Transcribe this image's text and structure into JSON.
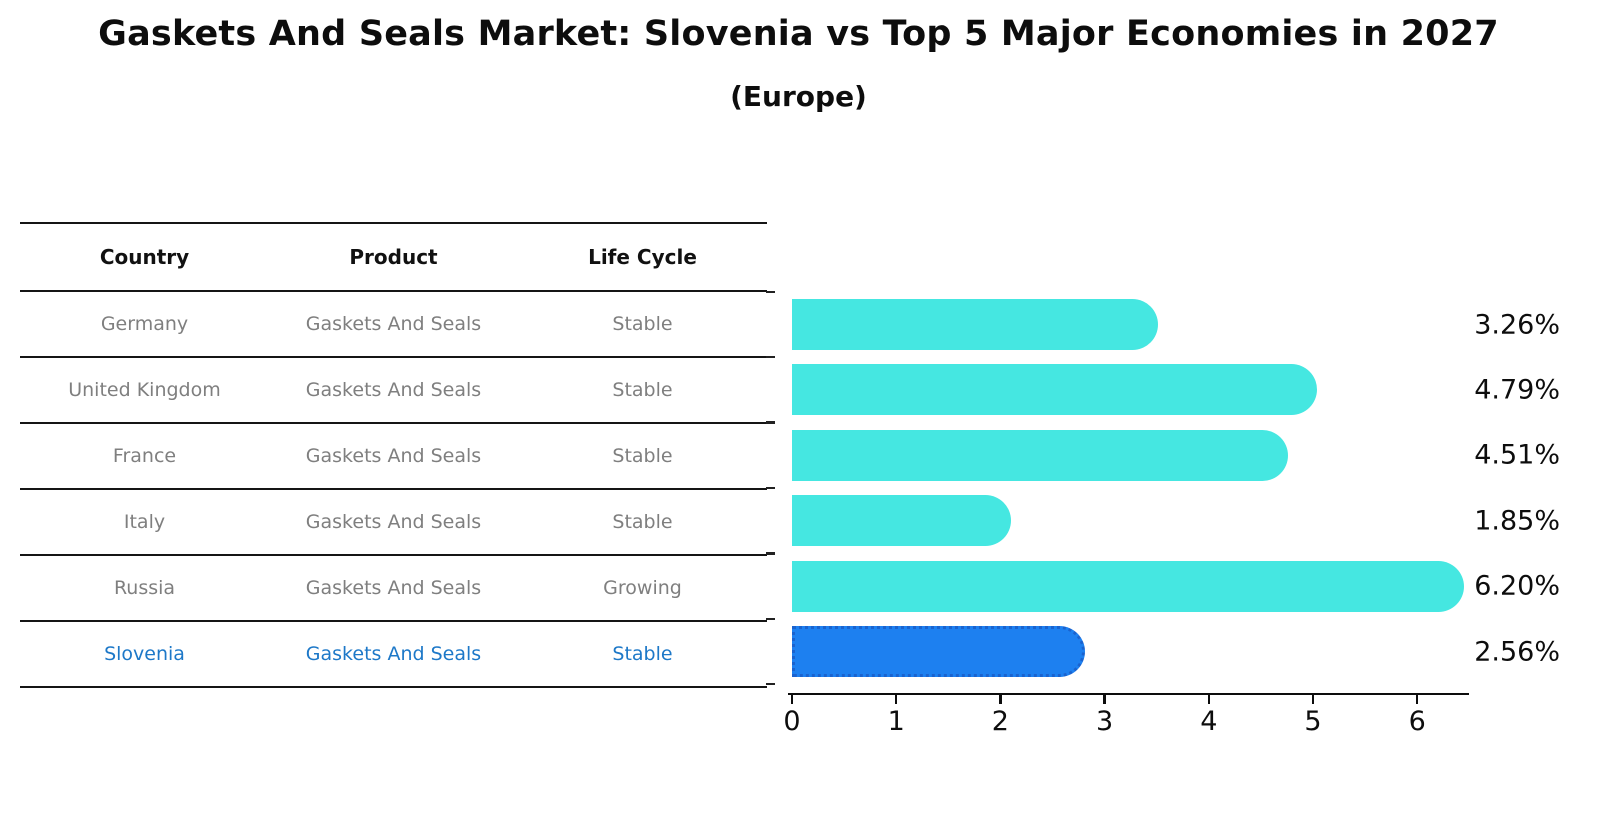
{
  "title": "Gaskets And Seals Market: Slovenia vs Top 5 Major Economies in 2027",
  "subtitle": "(Europe)",
  "table": {
    "headers": [
      "Country",
      "Product",
      "Life Cycle"
    ],
    "rows": [
      {
        "country": "Germany",
        "product": "Gaskets And Seals",
        "life_cycle": "Stable"
      },
      {
        "country": "United Kingdom",
        "product": "Gaskets And Seals",
        "life_cycle": "Stable"
      },
      {
        "country": "France",
        "product": "Gaskets And Seals",
        "life_cycle": "Stable"
      },
      {
        "country": "Italy",
        "product": "Gaskets And Seals",
        "life_cycle": "Stable"
      },
      {
        "country": "Russia",
        "product": "Gaskets And Seals",
        "life_cycle": "Growing"
      },
      {
        "country": "Slovenia",
        "product": "Gaskets And Seals",
        "life_cycle": "Stable"
      }
    ],
    "highlighted_country": "Slovenia"
  },
  "chart_data": {
    "type": "bar",
    "orientation": "horizontal",
    "title": "Gaskets And Seals Market: Slovenia vs Top 5 Major Economies in 2027",
    "subtitle": "(Europe)",
    "categories": [
      "Germany",
      "United Kingdom",
      "France",
      "Italy",
      "Russia",
      "Slovenia"
    ],
    "values": [
      3.26,
      4.79,
      4.51,
      1.85,
      6.2,
      2.56
    ],
    "value_labels": [
      "3.26%",
      "4.79%",
      "4.51%",
      "1.85%",
      "6.20%",
      "2.56%"
    ],
    "x_ticks": [
      0,
      1,
      2,
      3,
      4,
      5,
      6
    ],
    "xlim": [
      0,
      6.5
    ],
    "grid": false,
    "legend": false,
    "highlight_index": 5,
    "bar_color": "#45e7e1",
    "highlight_bar_color": "#1d80f0",
    "highlight_text_color": "#1d78c8",
    "label_color": "#0d0d0d"
  }
}
